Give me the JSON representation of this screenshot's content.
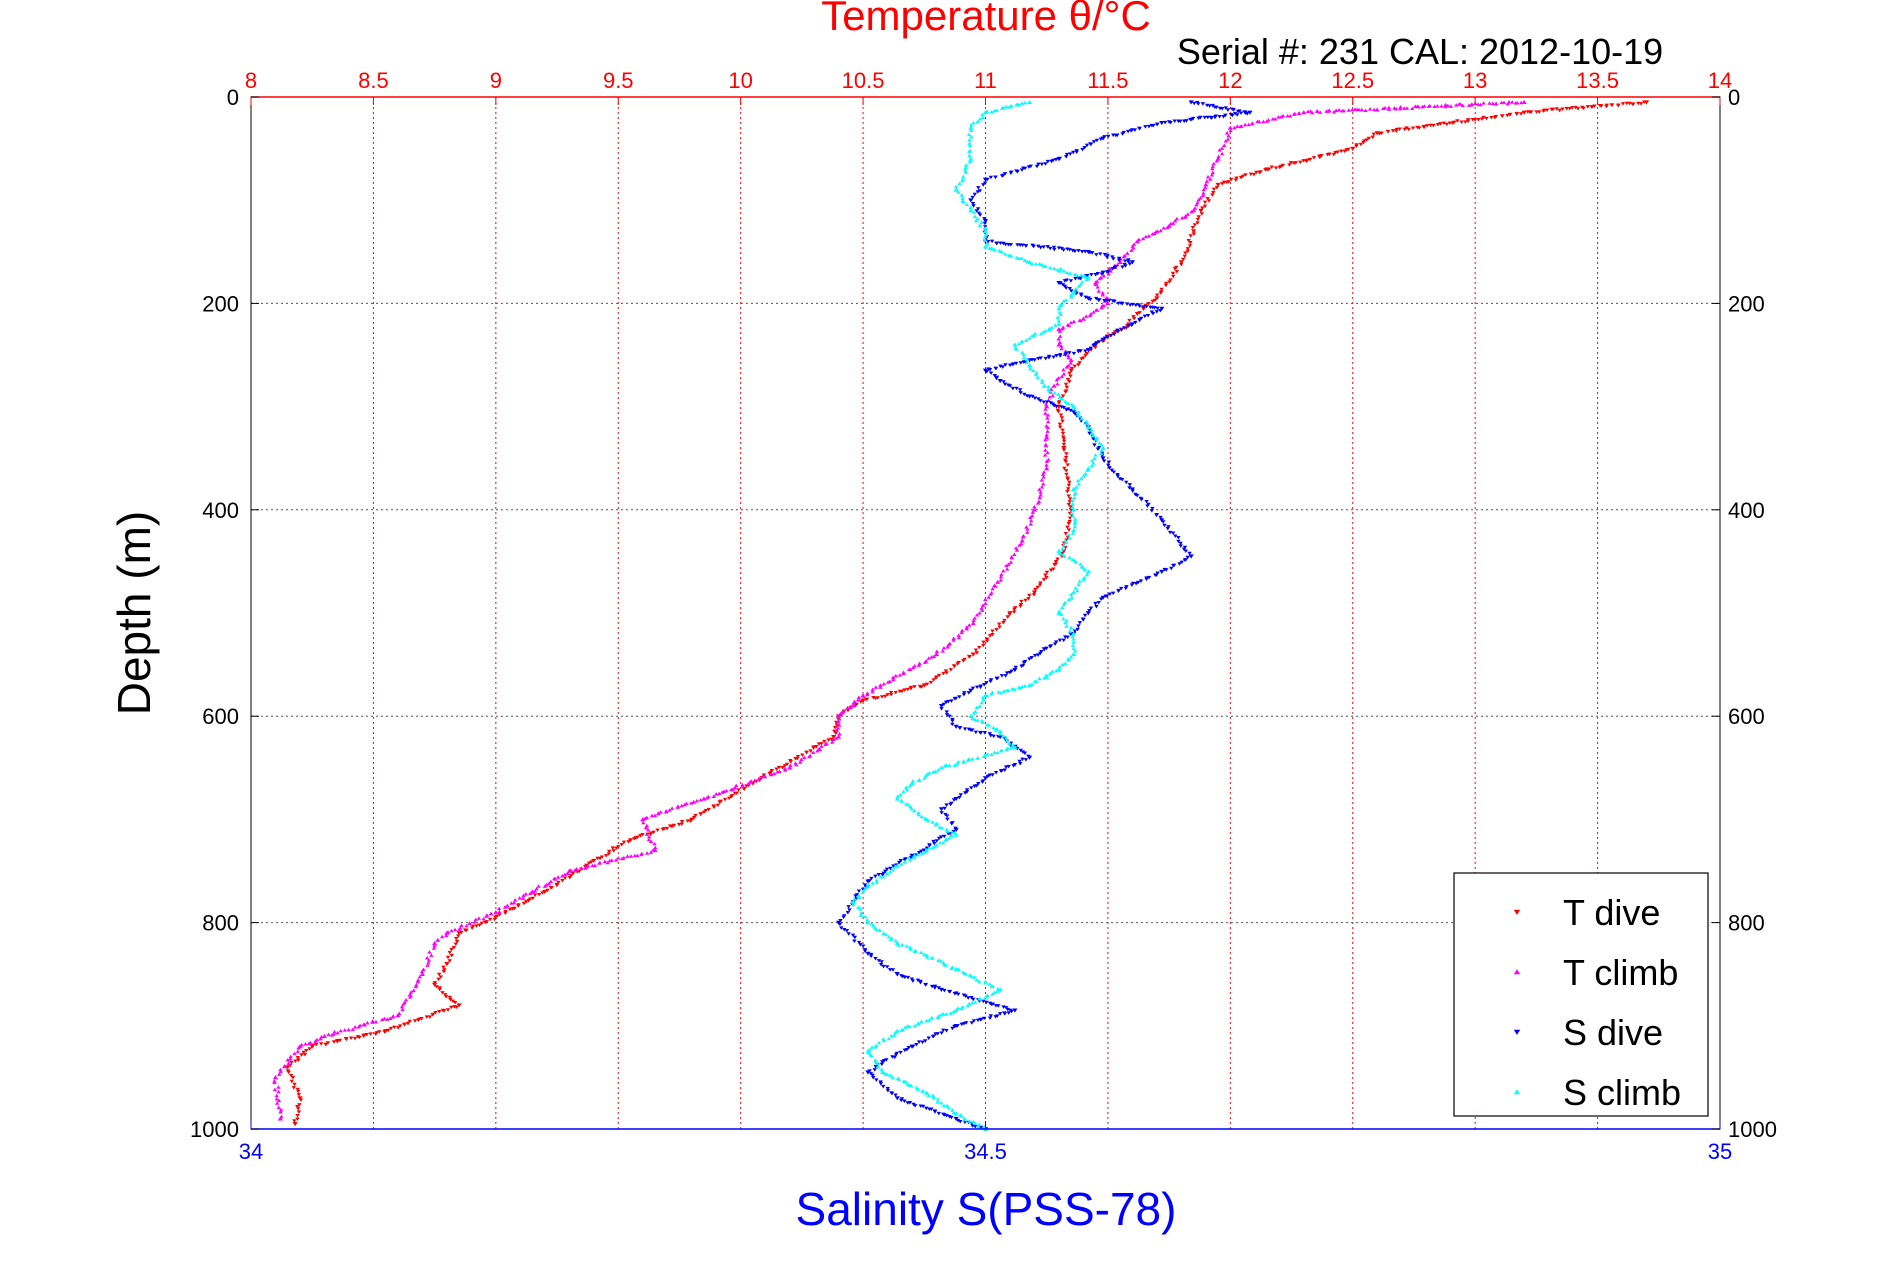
{
  "chart_data": {
    "type": "scatter",
    "title": "Temperature θ/°C",
    "subtitle": "Serial #: 231  CAL: 2012-10-19",
    "ylabel": "Depth (m)",
    "xlabel": "Salinity S(PSS-78)",
    "y_axis": {
      "ylim": [
        0,
        1000
      ],
      "reversed": true,
      "ticks": [
        0,
        200,
        400,
        600,
        800,
        1000
      ]
    },
    "x_top": {
      "xlim": [
        8,
        14
      ],
      "color": "#ff0000",
      "ticks": [
        8,
        8.5,
        9,
        9.5,
        10,
        10.5,
        11,
        11.5,
        12,
        12.5,
        13,
        13.5,
        14
      ],
      "tick_labels": [
        "8",
        "8.5",
        "9",
        "9.5",
        "10",
        "10.5",
        "11",
        "11.5",
        "12",
        "12.5",
        "13",
        "13.5",
        "14"
      ]
    },
    "x_bottom": {
      "xlim": [
        34,
        35
      ],
      "color": "#0000ff",
      "ticks": [
        34,
        34.5,
        35
      ],
      "tick_labels": [
        "34",
        "34.5",
        "35"
      ]
    },
    "grid": true,
    "legend_position": "bottom-right",
    "series": [
      {
        "name": "T dive",
        "axis": "top",
        "color": "#ff0000",
        "marker": "triangle-down",
        "points": [
          [
            13.7,
            5
          ],
          [
            13.2,
            15
          ],
          [
            12.6,
            35
          ],
          [
            12.5,
            50
          ],
          [
            12.15,
            70
          ],
          [
            11.95,
            85
          ],
          [
            11.88,
            110
          ],
          [
            11.85,
            130
          ],
          [
            11.8,
            160
          ],
          [
            11.7,
            195
          ],
          [
            11.62,
            210
          ],
          [
            11.58,
            222
          ],
          [
            11.45,
            240
          ],
          [
            11.35,
            265
          ],
          [
            11.3,
            300
          ],
          [
            11.32,
            340
          ],
          [
            11.35,
            400
          ],
          [
            11.32,
            440
          ],
          [
            11.2,
            480
          ],
          [
            11.1,
            500
          ],
          [
            10.95,
            540
          ],
          [
            10.75,
            570
          ],
          [
            10.5,
            585
          ],
          [
            10.4,
            600
          ],
          [
            10.38,
            620
          ],
          [
            10.05,
            665
          ],
          [
            9.8,
            700
          ],
          [
            9.55,
            720
          ],
          [
            9.4,
            740
          ],
          [
            9.2,
            770
          ],
          [
            9.0,
            795
          ],
          [
            8.85,
            810
          ],
          [
            8.8,
            840
          ],
          [
            8.75,
            860
          ],
          [
            8.85,
            880
          ],
          [
            8.55,
            905
          ],
          [
            8.25,
            920
          ],
          [
            8.15,
            940
          ],
          [
            8.2,
            970
          ],
          [
            8.18,
            995
          ]
        ]
      },
      {
        "name": "T climb",
        "axis": "top",
        "color": "#ff00ff",
        "marker": "triangle-up",
        "points": [
          [
            13.2,
            5
          ],
          [
            12.3,
            15
          ],
          [
            12.0,
            30
          ],
          [
            11.95,
            60
          ],
          [
            11.9,
            85
          ],
          [
            11.85,
            110
          ],
          [
            11.75,
            125
          ],
          [
            11.62,
            140
          ],
          [
            11.55,
            160
          ],
          [
            11.45,
            180
          ],
          [
            11.5,
            200
          ],
          [
            11.4,
            215
          ],
          [
            11.3,
            225
          ],
          [
            11.3,
            240
          ],
          [
            11.35,
            255
          ],
          [
            11.28,
            280
          ],
          [
            11.25,
            300
          ],
          [
            11.25,
            330
          ],
          [
            11.25,
            360
          ],
          [
            11.2,
            400
          ],
          [
            11.15,
            430
          ],
          [
            11.05,
            470
          ],
          [
            10.95,
            510
          ],
          [
            10.8,
            540
          ],
          [
            10.5,
            580
          ],
          [
            10.4,
            600
          ],
          [
            10.4,
            620
          ],
          [
            10.2,
            650
          ],
          [
            9.85,
            680
          ],
          [
            9.6,
            700
          ],
          [
            9.65,
            730
          ],
          [
            9.3,
            750
          ],
          [
            9.15,
            770
          ],
          [
            9.0,
            790
          ],
          [
            8.8,
            810
          ],
          [
            8.75,
            820
          ],
          [
            8.7,
            850
          ],
          [
            8.65,
            870
          ],
          [
            8.6,
            890
          ],
          [
            8.3,
            910
          ],
          [
            8.2,
            920
          ],
          [
            8.1,
            950
          ],
          [
            8.12,
            990
          ]
        ]
      },
      {
        "name": "S dive",
        "axis": "bottom",
        "color": "#0000ff",
        "marker": "triangle-down",
        "points": [
          [
            34.64,
            5
          ],
          [
            34.68,
            15
          ],
          [
            34.62,
            25
          ],
          [
            34.58,
            40
          ],
          [
            34.55,
            60
          ],
          [
            34.5,
            80
          ],
          [
            34.49,
            100
          ],
          [
            34.5,
            120
          ],
          [
            34.5,
            140
          ],
          [
            34.57,
            150
          ],
          [
            34.6,
            160
          ],
          [
            34.58,
            170
          ],
          [
            34.55,
            180
          ],
          [
            34.57,
            195
          ],
          [
            34.62,
            205
          ],
          [
            34.6,
            220
          ],
          [
            34.58,
            235
          ],
          [
            34.57,
            245
          ],
          [
            34.53,
            255
          ],
          [
            34.5,
            265
          ],
          [
            34.51,
            275
          ],
          [
            34.53,
            290
          ],
          [
            34.56,
            305
          ],
          [
            34.57,
            320
          ],
          [
            34.58,
            350
          ],
          [
            34.6,
            380
          ],
          [
            34.62,
            410
          ],
          [
            34.64,
            445
          ],
          [
            34.62,
            460
          ],
          [
            34.58,
            485
          ],
          [
            34.57,
            500
          ],
          [
            34.56,
            520
          ],
          [
            34.54,
            535
          ],
          [
            34.52,
            555
          ],
          [
            34.49,
            575
          ],
          [
            34.47,
            590
          ],
          [
            34.48,
            610
          ],
          [
            34.51,
            620
          ],
          [
            34.53,
            640
          ],
          [
            34.5,
            660
          ],
          [
            34.48,
            680
          ],
          [
            34.47,
            690
          ],
          [
            34.48,
            710
          ],
          [
            34.45,
            735
          ],
          [
            34.42,
            760
          ],
          [
            34.41,
            780
          ],
          [
            34.4,
            800
          ],
          [
            34.42,
            830
          ],
          [
            34.44,
            850
          ],
          [
            34.47,
            865
          ],
          [
            34.52,
            885
          ],
          [
            34.48,
            900
          ],
          [
            34.45,
            920
          ],
          [
            34.43,
            935
          ],
          [
            34.42,
            945
          ],
          [
            34.44,
            970
          ],
          [
            34.48,
            990
          ],
          [
            34.5,
            1000
          ]
        ]
      },
      {
        "name": "S climb",
        "axis": "bottom",
        "color": "#00ffff",
        "marker": "triangle-up",
        "points": [
          [
            34.53,
            5
          ],
          [
            34.5,
            15
          ],
          [
            34.49,
            30
          ],
          [
            34.49,
            60
          ],
          [
            34.48,
            90
          ],
          [
            34.49,
            110
          ],
          [
            34.5,
            130
          ],
          [
            34.5,
            145
          ],
          [
            34.53,
            160
          ],
          [
            34.57,
            175
          ],
          [
            34.56,
            190
          ],
          [
            34.55,
            205
          ],
          [
            34.55,
            220
          ],
          [
            34.52,
            240
          ],
          [
            34.53,
            260
          ],
          [
            34.54,
            280
          ],
          [
            34.56,
            300
          ],
          [
            34.57,
            320
          ],
          [
            34.58,
            340
          ],
          [
            34.57,
            360
          ],
          [
            34.56,
            380
          ],
          [
            34.56,
            400
          ],
          [
            34.56,
            420
          ],
          [
            34.55,
            440
          ],
          [
            34.57,
            460
          ],
          [
            34.56,
            480
          ],
          [
            34.55,
            500
          ],
          [
            34.56,
            520
          ],
          [
            34.56,
            540
          ],
          [
            34.55,
            555
          ],
          [
            34.53,
            570
          ],
          [
            34.5,
            580
          ],
          [
            34.49,
            600
          ],
          [
            34.51,
            615
          ],
          [
            34.52,
            630
          ],
          [
            34.47,
            650
          ],
          [
            34.45,
            665
          ],
          [
            34.44,
            680
          ],
          [
            34.46,
            700
          ],
          [
            34.48,
            715
          ],
          [
            34.46,
            730
          ],
          [
            34.44,
            745
          ],
          [
            34.42,
            765
          ],
          [
            34.41,
            780
          ],
          [
            34.42,
            800
          ],
          [
            34.44,
            820
          ],
          [
            34.48,
            845
          ],
          [
            34.51,
            865
          ],
          [
            34.48,
            885
          ],
          [
            34.44,
            905
          ],
          [
            34.42,
            925
          ],
          [
            34.43,
            945
          ],
          [
            34.46,
            965
          ],
          [
            34.48,
            985
          ],
          [
            34.5,
            1000
          ]
        ]
      }
    ]
  }
}
